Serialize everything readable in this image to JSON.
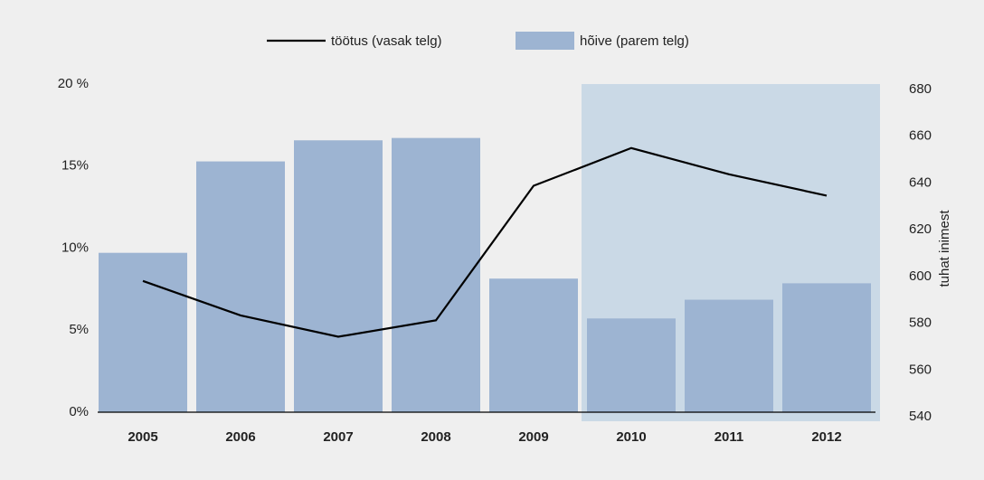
{
  "chart_data": {
    "type": "bar_line",
    "categories": [
      "2005",
      "2006",
      "2007",
      "2008",
      "2009",
      "2010",
      "2011",
      "2012"
    ],
    "series": [
      {
        "name": "töötus (vasak telg)",
        "type": "line",
        "color": "#000000",
        "axis": "y",
        "values": [
          8.0,
          5.9,
          4.6,
          5.6,
          13.8,
          16.1,
          14.5,
          13.2
        ]
      },
      {
        "name": "hõive (parem telg)",
        "type": "bar",
        "color": "#9db4d2",
        "axis": "y2",
        "values": [
          608,
          647,
          656,
          657,
          597,
          580,
          588,
          595
        ]
      }
    ],
    "ylim": [
      0,
      20
    ],
    "yticks": [
      {
        "value": 0,
        "label": "0%"
      },
      {
        "value": 5,
        "label": "5%"
      },
      {
        "value": 10,
        "label": "10%"
      },
      {
        "value": 15,
        "label": "15%"
      },
      {
        "value": 20,
        "label": "20 %"
      }
    ],
    "y2lim": [
      540,
      680
    ],
    "y2ticks": [
      540,
      560,
      580,
      600,
      620,
      640,
      660,
      680
    ],
    "y2label": "tuhat inimest",
    "grid": false
  }
}
